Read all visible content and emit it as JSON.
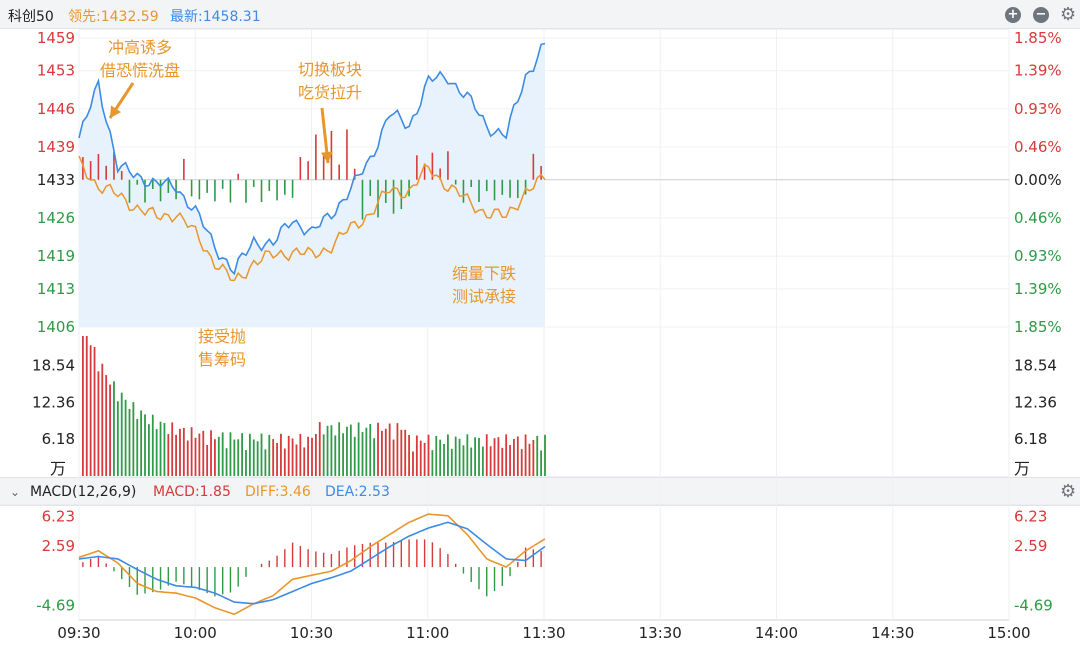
{
  "header": {
    "name": "科创50",
    "lead_label": "领先:1432.59",
    "latest_label": "最新:1458.31"
  },
  "macd_header": {
    "label": "MACD(12,26,9)",
    "macd_text": "MACD:1.85",
    "diff_text": "DIFF:3.46",
    "dea_text": "DEA:2.53"
  },
  "annotations": [
    {
      "lines": [
        "冲高诱多",
        "借恐慌洗盘"
      ]
    },
    {
      "lines": [
        "切换板块",
        "吃货拉升"
      ]
    },
    {
      "lines": [
        "缩量下跌",
        "测试承接"
      ]
    },
    {
      "lines": [
        "接受抛",
        "售筹码"
      ]
    }
  ],
  "colors": {
    "up": "#d63a3a",
    "down": "#2f9a47",
    "latest": "#3d8be4",
    "lead": "#e8962c",
    "neutral": "#222222"
  },
  "chart_data": [
    {
      "type": "line",
      "name": "price",
      "x": [
        "09:30",
        "09:35",
        "09:40",
        "09:45",
        "09:50",
        "09:55",
        "10:00",
        "10:05",
        "10:10",
        "10:15",
        "10:20",
        "10:25",
        "10:30",
        "10:35",
        "10:40",
        "10:45",
        "10:50",
        "10:55",
        "11:00",
        "11:05",
        "11:10",
        "11:15",
        "11:20",
        "11:25",
        "11:30"
      ],
      "series": [
        {
          "values": [
            1440,
            1451,
            1435,
            1434,
            1432,
            1432,
            1427,
            1421,
            1416,
            1422,
            1421,
            1426,
            1423,
            1427,
            1431,
            1437,
            1445,
            1443,
            1451,
            1452,
            1448,
            1443,
            1441,
            1452,
            1458
          ]
        },
        {
          "values": [
            1436,
            1432,
            1430,
            1428,
            1426,
            1427,
            1423,
            1418,
            1414,
            1418,
            1419,
            1420,
            1419,
            1421,
            1424,
            1427,
            1431,
            1431,
            1435,
            1432,
            1429,
            1427,
            1426,
            1431,
            1433
          ]
        }
      ],
      "reference": 1433,
      "y_ticks_left": [
        "1459",
        "1453",
        "1446",
        "1439",
        "1433",
        "1426",
        "1419",
        "1413",
        "1406"
      ],
      "y_ticks_right": [
        "1.85%",
        "1.39%",
        "0.93%",
        "0.46%",
        "0.00%",
        "0.46%",
        "0.93%",
        "1.39%",
        "1.85%"
      ],
      "ylim": [
        1406,
        1459
      ]
    },
    {
      "type": "bar",
      "name": "volume",
      "y_ticks": [
        "18.54",
        "12.36",
        "6.18"
      ],
      "unit": "万",
      "ylim": [
        0,
        24
      ]
    },
    {
      "type": "bar",
      "name": "macd",
      "series": [
        {
          "name": "DIFF",
          "values": [
            1.2,
            2.0,
            0.5,
            -2.0,
            -3.0,
            -3.2,
            -3.8,
            -5.0,
            -5.8,
            -4.5,
            -3.5,
            -1.5,
            -1.0,
            -0.5,
            0.8,
            2.5,
            4.0,
            5.5,
            6.5,
            6.3,
            4.0,
            1.0,
            0.0,
            2.0,
            3.46
          ]
        },
        {
          "name": "DEA",
          "values": [
            1.0,
            1.3,
            1.0,
            -0.3,
            -1.5,
            -2.3,
            -2.5,
            -3.2,
            -4.3,
            -4.5,
            -4.0,
            -3.0,
            -2.0,
            -1.3,
            -0.5,
            1.0,
            2.5,
            3.8,
            4.8,
            5.5,
            4.7,
            2.8,
            1.0,
            0.8,
            2.53
          ]
        }
      ],
      "y_ticks": [
        "6.23",
        "2.59",
        "-4.69"
      ],
      "ylim": [
        -6.5,
        7.5
      ]
    }
  ],
  "x_axis": {
    "ticks": [
      "09:30",
      "10:00",
      "10:30",
      "11:00",
      "11:30",
      "13:30",
      "14:00",
      "14:30",
      "15:00"
    ]
  }
}
